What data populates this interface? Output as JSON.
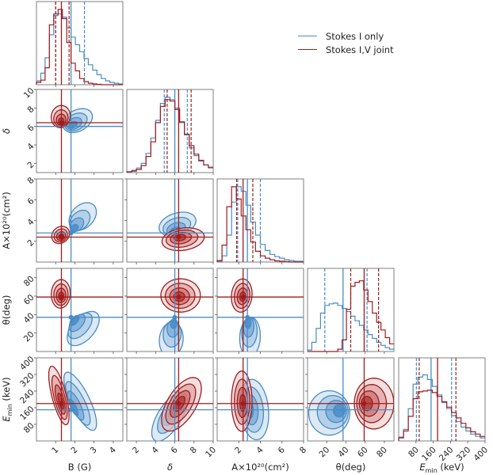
{
  "chart_data": {
    "type": "corner",
    "title": "",
    "legend": {
      "placement": "top-right",
      "entries": [
        {
          "label": "Stokes I only",
          "color": "#4a8cc4"
        },
        {
          "label": "Stokes I,V joint",
          "color": "#a01c1c"
        }
      ]
    },
    "parameters": [
      {
        "name": "B",
        "xlabel": "B (G)",
        "ylabel": "",
        "range": [
          0,
          4.5
        ],
        "ticks": [
          1,
          2,
          3,
          4
        ]
      },
      {
        "name": "delta",
        "xlabel": "δ",
        "ylabel": "δ",
        "range": [
          1,
          10
        ],
        "ticks": [
          2,
          4,
          6,
          8,
          10
        ]
      },
      {
        "name": "A",
        "xlabel": "A×10²⁰(cm²)",
        "ylabel": "A×10²⁰(cm²)",
        "range": [
          0,
          8
        ],
        "ticks": [
          2,
          4,
          6,
          8
        ]
      },
      {
        "name": "theta",
        "xlabel": "θ(deg)",
        "ylabel": "θ(deg)",
        "range": [
          0,
          90
        ],
        "ticks": [
          20,
          40,
          60,
          80
        ]
      },
      {
        "name": "Emin",
        "xlabel": "E_min (keV)",
        "ylabel": "E_min (keV)",
        "range": [
          0,
          400
        ],
        "ticks": [
          80,
          160,
          240,
          320,
          400
        ]
      }
    ],
    "series": [
      {
        "name": "Stokes I only",
        "color": "#4a8cc4",
        "median": [
          1.8,
          6.0,
          2.8,
          37,
          150
        ],
        "q16": [
          1.0,
          4.9,
          1.9,
          18,
          82
        ],
        "q84": [
          2.5,
          7.3,
          4.0,
          62,
          245
        ],
        "hist": [
          [
            0.5,
            1.5,
            3.5,
            6.5,
            9.0,
            9.2,
            8.8,
            7.4,
            6.2,
            5.2,
            4.3,
            3.4,
            2.6,
            1.9,
            1.3,
            0.8,
            0.5,
            0.3,
            0.2,
            0.1
          ],
          [
            0.1,
            0.3,
            0.6,
            1.2,
            2.5,
            4.5,
            6.8,
            9.0,
            9.8,
            9.5,
            8.4,
            6.5,
            4.9,
            3.2,
            2.2,
            1.5,
            1.0,
            0.6
          ],
          [
            0.1,
            0.8,
            3.5,
            7.8,
            9.8,
            9.2,
            7.4,
            5.2,
            3.5,
            2.3,
            1.5,
            1.0,
            0.7,
            0.5,
            0.3,
            0.2,
            0.1,
            0.1
          ],
          [
            0.2,
            1.2,
            3.0,
            5.0,
            6.0,
            6.2,
            6.3,
            6.0,
            5.6,
            5.2,
            4.6,
            4.0,
            3.4,
            2.8,
            2.2,
            1.7,
            1.2,
            0.8,
            0.5,
            0.3
          ],
          [
            0.5,
            1.5,
            4.2,
            7.4,
            8.3,
            8.6,
            8.0,
            7.1,
            6.0,
            5.0,
            4.2,
            3.3,
            2.5,
            1.8,
            1.3,
            0.9,
            0.6,
            0.4
          ]
        ]
      },
      {
        "name": "Stokes I,V joint",
        "color": "#a01c1c",
        "median": [
          1.3,
          6.4,
          2.4,
          59,
          180
        ],
        "q16": [
          1.0,
          5.2,
          1.8,
          45,
          95
        ],
        "q84": [
          1.7,
          7.7,
          3.3,
          74,
          265
        ],
        "hist": [
          [
            0.3,
            0.6,
            2.2,
            7.8,
            9.2,
            9.8,
            8.6,
            5.5,
            2.8,
            1.8,
            0.8,
            0.4,
            0.2,
            0.1,
            0.05,
            0,
            0,
            0,
            0,
            0
          ],
          [
            0.1,
            0.2,
            0.4,
            0.9,
            2.1,
            4.0,
            6.5,
            8.6,
            9.5,
            9.3,
            8.2,
            6.6,
            5.0,
            3.5,
            2.4,
            1.6,
            1.0,
            0.7
          ],
          [
            0.2,
            2.2,
            7.2,
            9.8,
            8.2,
            6.0,
            4.2,
            2.6,
            1.4,
            0.8,
            0.5,
            0.3,
            0.15,
            0.1,
            0.05,
            0,
            0,
            0
          ],
          [
            0,
            0,
            0,
            0,
            0,
            0,
            0,
            0.3,
            1.5,
            5.5,
            8.5,
            9.0,
            9.2,
            8.0,
            6.5,
            5.0,
            3.8,
            2.8,
            1.8,
            1.0
          ],
          [
            0.4,
            1.3,
            3.2,
            5.5,
            6.4,
            6.5,
            6.6,
            6.3,
            5.8,
            5.1,
            4.4,
            3.7,
            3.0,
            2.3,
            1.7,
            1.2,
            0.9,
            0.6
          ]
        ]
      }
    ]
  },
  "labels": {
    "legend_0": "Stokes I only",
    "legend_1": "Stokes I,V joint"
  }
}
